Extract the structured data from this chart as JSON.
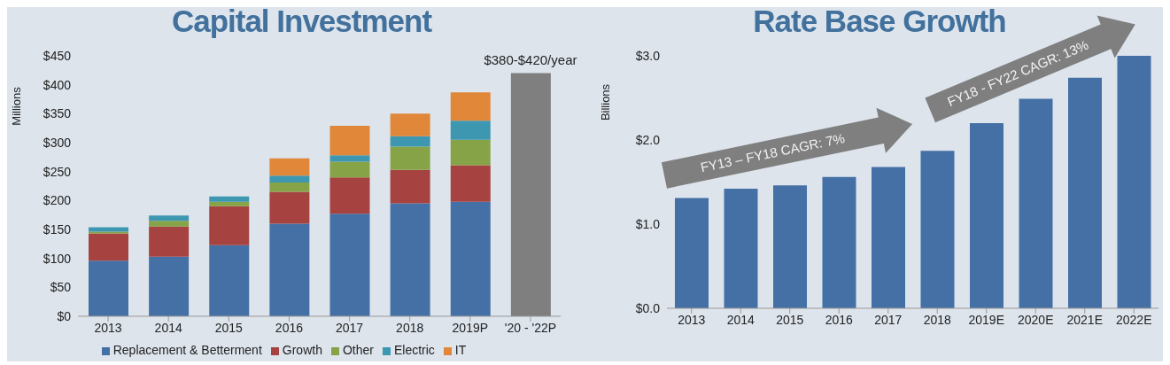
{
  "chart_data": [
    {
      "type": "bar",
      "title": "Capital Investment",
      "ylabel": "Millions",
      "stacked": true,
      "legend": "bottom",
      "categories": [
        "2013",
        "2014",
        "2015",
        "2016",
        "2017",
        "2018",
        "2019P",
        "'20 - '22P"
      ],
      "series": [
        {
          "name": "Replacement & Betterment",
          "color": "#4470a6",
          "values": [
            96,
            103,
            123,
            160,
            177,
            195,
            198,
            null
          ]
        },
        {
          "name": "Growth",
          "color": "#a6423f",
          "values": [
            47,
            52,
            67,
            55,
            63,
            58,
            63,
            null
          ]
        },
        {
          "name": "Other",
          "color": "#87a347",
          "values": [
            3,
            10,
            8,
            16,
            27,
            40,
            44,
            null
          ]
        },
        {
          "name": "Electric",
          "color": "#3e97b0",
          "values": [
            8,
            9,
            9,
            12,
            11,
            18,
            33,
            null
          ]
        },
        {
          "name": "IT",
          "color": "#e0873a",
          "values": [
            0,
            0,
            0,
            30,
            51,
            39,
            49,
            null
          ]
        },
        {
          "color": "#7f7f7f",
          "values": [
            null,
            null,
            null,
            null,
            null,
            null,
            null,
            420
          ]
        }
      ],
      "ylim": [
        0,
        450
      ],
      "yticks": [
        {
          "value": 0,
          "label": "$0"
        },
        {
          "value": 50,
          "label": "$50"
        },
        {
          "value": 100,
          "label": "$100"
        },
        {
          "value": 150,
          "label": "$150"
        },
        {
          "value": 200,
          "label": "$200"
        },
        {
          "value": 250,
          "label": "$250"
        },
        {
          "value": 300,
          "label": "$300"
        },
        {
          "value": 350,
          "label": "$350"
        },
        {
          "value": 400,
          "label": "$400"
        },
        {
          "value": 450,
          "label": "$450"
        }
      ],
      "annotations": [
        {
          "text": "$380-$420/year",
          "x": "'20 - '22P",
          "y": 420
        }
      ]
    },
    {
      "type": "bar",
      "title": "Rate Base Growth",
      "ylabel": "Billions",
      "categories": [
        "2013",
        "2014",
        "2015",
        "2016",
        "2017",
        "2018",
        "2019E",
        "2020E",
        "2021E",
        "2022E"
      ],
      "series": [
        {
          "color": "#4470a6",
          "values": [
            1.31,
            1.42,
            1.46,
            1.56,
            1.68,
            1.87,
            2.2,
            2.49,
            2.74,
            3.0
          ]
        }
      ],
      "ylim": [
        0,
        3
      ],
      "yticks": [
        {
          "value": 0,
          "label": "$0.0"
        },
        {
          "value": 1,
          "label": "$1.0"
        },
        {
          "value": 2,
          "label": "$2.0"
        },
        {
          "value": 3,
          "label": "$3.0"
        }
      ],
      "annotations": [
        "FY13 – FY18 CAGR: 7%",
        "FY18 - FY22 CAGR: 13%"
      ]
    }
  ]
}
